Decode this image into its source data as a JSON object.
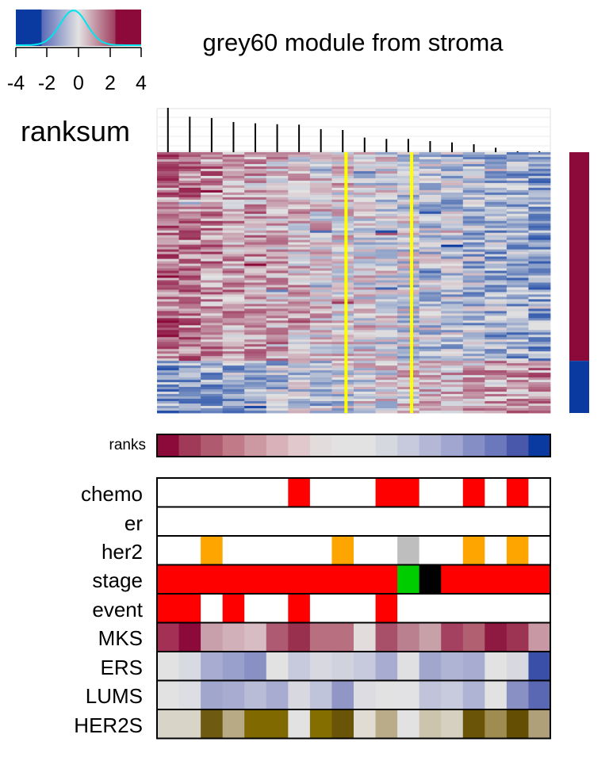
{
  "title": "grey60 module from stroma",
  "colorbar": {
    "ticks": [
      "-4",
      "-2",
      "0",
      "2",
      "4"
    ],
    "low_color": "#0a3aa0",
    "high_color": "#8b0a3a",
    "hist_color": "#00e5ee"
  },
  "ranksum_label": "ranksum",
  "ranks_label": "ranks",
  "row_labels": [
    "chemo",
    "er",
    "her2",
    "stage",
    "event",
    "MKS",
    "ERS",
    "LUMS",
    "HER2S"
  ],
  "chart_data": {
    "type": "heatmap",
    "title": "grey60 module from stroma",
    "n_samples": 18,
    "ranksum_values": [
      1.0,
      0.8,
      0.77,
      0.68,
      0.65,
      0.63,
      0.62,
      0.52,
      0.5,
      0.33,
      0.3,
      0.3,
      0.25,
      0.22,
      0.18,
      0.1,
      0.02,
      0.02
    ],
    "group_split_columns": [
      8,
      11
    ],
    "split_line_color": "#ffff00",
    "side_bar": [
      {
        "color": "#8b0a3a",
        "fraction": 0.8
      },
      {
        "color": "#0a3aa0",
        "fraction": 0.2
      }
    ],
    "ranks_colors": [
      "#8b0a3a",
      "#a03a58",
      "#b05a70",
      "#c07a88",
      "#cc98a2",
      "#d8b2b8",
      "#e0c8cc",
      "#e2dcdc",
      "#e2e2e2",
      "#e2e2e2",
      "#d6d8e0",
      "#c6cadc",
      "#b4b8d6",
      "#a0a6d0",
      "#868ec6",
      "#6c78bc",
      "#4a58ac",
      "#0a3aa0"
    ],
    "tracks": {
      "chemo": [
        "#ffffff",
        "#ffffff",
        "#ffffff",
        "#ffffff",
        "#ffffff",
        "#ffffff",
        "#ff0000",
        "#ffffff",
        "#ffffff",
        "#ffffff",
        "#ff0000",
        "#ff0000",
        "#ffffff",
        "#ffffff",
        "#ff0000",
        "#ffffff",
        "#ff0000",
        "#ffffff"
      ],
      "er": [
        "#ffffff",
        "#ffffff",
        "#ffffff",
        "#ffffff",
        "#ffffff",
        "#ffffff",
        "#ffffff",
        "#ffffff",
        "#ffffff",
        "#ffffff",
        "#ffffff",
        "#ffffff",
        "#ffffff",
        "#ffffff",
        "#ffffff",
        "#ffffff",
        "#ffffff",
        "#ffffff"
      ],
      "her2": [
        "#ffffff",
        "#ffffff",
        "#ffa500",
        "#ffffff",
        "#ffffff",
        "#ffffff",
        "#ffffff",
        "#ffffff",
        "#ffa500",
        "#ffffff",
        "#ffffff",
        "#bebebe",
        "#ffffff",
        "#ffffff",
        "#ffa500",
        "#ffffff",
        "#ffa500",
        "#ffffff"
      ],
      "stage": [
        "#ff0000",
        "#ff0000",
        "#ff0000",
        "#ff0000",
        "#ff0000",
        "#ff0000",
        "#ff0000",
        "#ff0000",
        "#ff0000",
        "#ff0000",
        "#ff0000",
        "#00cd00",
        "#000000",
        "#ff0000",
        "#ff0000",
        "#ff0000",
        "#ff0000",
        "#ff0000"
      ],
      "event": [
        "#ff0000",
        "#ff0000",
        "#ffffff",
        "#ff0000",
        "#ffffff",
        "#ffffff",
        "#ff0000",
        "#ffffff",
        "#ffffff",
        "#ffffff",
        "#ff0000",
        "#ffffff",
        "#ffffff",
        "#ffffff",
        "#ffffff",
        "#ffffff",
        "#ffffff",
        "#ffffff"
      ],
      "MKS": [
        "#a43055",
        "#8b0a3a",
        "#c8a0ac",
        "#d2b0ba",
        "#d8bcc4",
        "#ae5a72",
        "#98304e",
        "#b87080",
        "#b87080",
        "#e2dcdc",
        "#a8506a",
        "#bb8090",
        "#c8a0a8",
        "#a44060",
        "#b06070",
        "#8e1a42",
        "#9e3454",
        "#c898a4"
      ],
      "ERS": [
        "#e2e2e2",
        "#d8dae2",
        "#a8acd0",
        "#9aa0cc",
        "#8890c4",
        "#e2e2e2",
        "#c6cadc",
        "#d8d8e0",
        "#d0d2de",
        "#c6cadc",
        "#a8acd0",
        "#e0e0e2",
        "#a0a6cc",
        "#b0b4d4",
        "#a8acd0",
        "#e2e2e2",
        "#d8d8e0",
        "#3a50a8"
      ],
      "LUMS": [
        "#e2e2e2",
        "#dcdee4",
        "#a0a6cc",
        "#a8acd0",
        "#b8bcd6",
        "#a8acd0",
        "#d8d8e0",
        "#c0c4da",
        "#9096c6",
        "#dcdce2",
        "#e2e2e2",
        "#e2e2e4",
        "#c0c4da",
        "#c8cade",
        "#b0b4d4",
        "#e2e2e2",
        "#8890c4",
        "#5a68b4"
      ],
      "HER2S": [
        "#d8d4c8",
        "#d8d4c8",
        "#6e5a10",
        "#b8aa84",
        "#806a00",
        "#806a00",
        "#e2e2e2",
        "#846e00",
        "#6a5408",
        "#e0dcd4",
        "#baac88",
        "#e2e2e2",
        "#ccc4ac",
        "#d6d0c0",
        "#6a5408",
        "#9e8c50",
        "#644e04",
        "#b0a07a"
      ]
    }
  }
}
